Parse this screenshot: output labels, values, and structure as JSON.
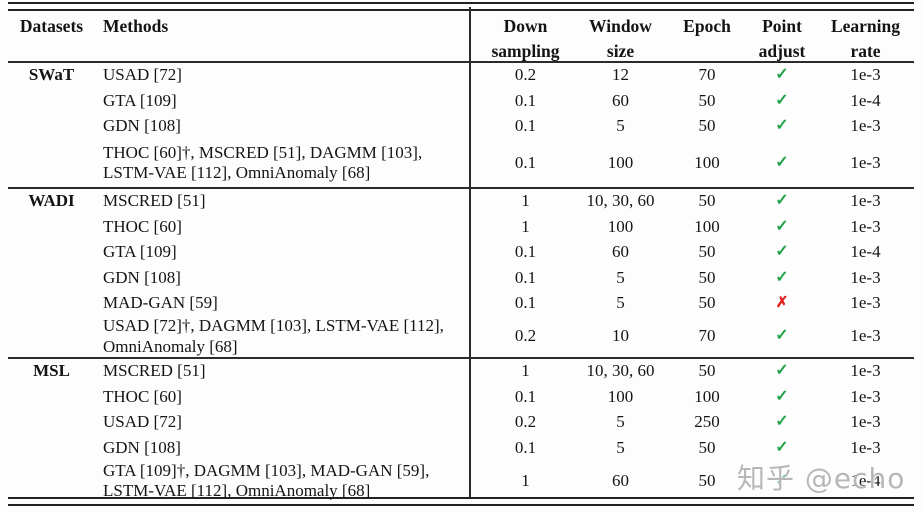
{
  "table": {
    "header": {
      "datasets": "Datasets",
      "methods": "Methods",
      "down_sampling": "Down\nsampling",
      "window_size": "Window\nsize",
      "epoch": "Epoch",
      "point_adjust": "Point\nadjust",
      "learning_rate": "Learning\nrate"
    },
    "sections": [
      {
        "dataset": "SWaT",
        "rows": [
          {
            "methods": "USAD [72]",
            "down": "0.2",
            "window": "12",
            "epoch": "70",
            "point": "✓",
            "lr": "1e-3"
          },
          {
            "methods": "GTA [109]",
            "down": "0.1",
            "window": "60",
            "epoch": "50",
            "point": "✓",
            "lr": "1e-4"
          },
          {
            "methods": "GDN [108]",
            "down": "0.1",
            "window": "5",
            "epoch": "50",
            "point": "✓",
            "lr": "1e-3"
          },
          {
            "methods": "THOC [60]†, MSCRED [51], DAGMM [103],\nLSTM-VAE [112], OmniAnomaly [68]",
            "down": "0.1",
            "window": "100",
            "epoch": "100",
            "point": "✓",
            "lr": "1e-3"
          }
        ]
      },
      {
        "dataset": "WADI",
        "rows": [
          {
            "methods": "MSCRED [51]",
            "down": "1",
            "window": "10, 30, 60",
            "epoch": "50",
            "point": "✓",
            "lr": "1e-3"
          },
          {
            "methods": "THOC [60]",
            "down": "1",
            "window": "100",
            "epoch": "100",
            "point": "✓",
            "lr": "1e-3"
          },
          {
            "methods": "GTA [109]",
            "down": "0.1",
            "window": "60",
            "epoch": "50",
            "point": "✓",
            "lr": "1e-4"
          },
          {
            "methods": "GDN [108]",
            "down": "0.1",
            "window": "5",
            "epoch": "50",
            "point": "✓",
            "lr": "1e-3"
          },
          {
            "methods": "MAD-GAN [59]",
            "down": "0.1",
            "window": "5",
            "epoch": "50",
            "point": "✗",
            "lr": "1e-3"
          },
          {
            "methods": "USAD [72]†, DAGMM [103], LSTM-VAE [112],\nOmniAnomaly [68]",
            "down": "0.2",
            "window": "10",
            "epoch": "70",
            "point": "✓",
            "lr": "1e-3"
          }
        ]
      },
      {
        "dataset": "MSL",
        "rows": [
          {
            "methods": "MSCRED [51]",
            "down": "1",
            "window": "10, 30, 60",
            "epoch": "50",
            "point": "✓",
            "lr": "1e-3"
          },
          {
            "methods": "THOC [60]",
            "down": "0.1",
            "window": "100",
            "epoch": "100",
            "point": "✓",
            "lr": "1e-3"
          },
          {
            "methods": "USAD [72]",
            "down": "0.2",
            "window": "5",
            "epoch": "250",
            "point": "✓",
            "lr": "1e-3"
          },
          {
            "methods": "GDN [108]",
            "down": "0.1",
            "window": "5",
            "epoch": "50",
            "point": "✓",
            "lr": "1e-3"
          },
          {
            "methods": "GTA [109]†, DAGMM [103], MAD-GAN [59],\nLSTM-VAE [112], OmniAnomaly [68]",
            "down": "1",
            "window": "60",
            "epoch": "50",
            "point": "✓",
            "lr": "1e-4"
          }
        ]
      }
    ]
  },
  "watermark": "知乎 @echo",
  "colors": {
    "check_green": "#21a24b",
    "cross_red": "#e02420",
    "rule": "#222222",
    "text": "#141414",
    "watermark_gray": "#b7b7b7",
    "background": "#fdfdfd"
  }
}
